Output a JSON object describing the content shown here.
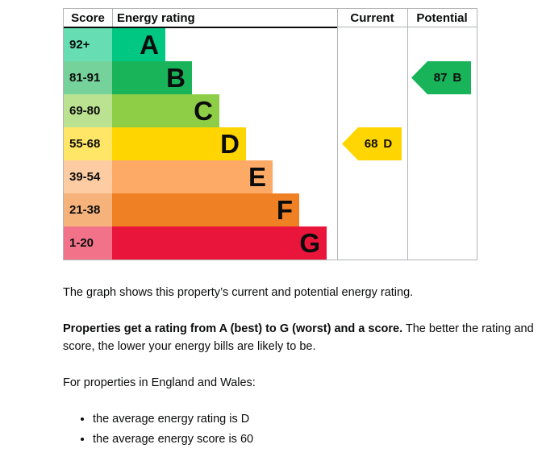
{
  "chart": {
    "headers": {
      "score": "Score",
      "energy_rating": "Energy rating",
      "current": "Current",
      "potential": "Potential"
    },
    "bands": [
      {
        "letter": "A",
        "score_range": "92+",
        "color": "#00c781"
      },
      {
        "letter": "B",
        "score_range": "81-91",
        "color": "#19b459"
      },
      {
        "letter": "C",
        "score_range": "69-80",
        "color": "#8dce46"
      },
      {
        "letter": "D",
        "score_range": "55-68",
        "color": "#ffd500"
      },
      {
        "letter": "E",
        "score_range": "39-54",
        "color": "#fcaa65"
      },
      {
        "letter": "F",
        "score_range": "21-38",
        "color": "#ef8023"
      },
      {
        "letter": "G",
        "score_range": "1-20",
        "color": "#e9153b"
      }
    ],
    "current": {
      "label": "68 D",
      "score": "68",
      "band": "D",
      "band_index": 3,
      "color": "#ffd500"
    },
    "potential": {
      "label": "87 B",
      "score": "87",
      "band": "B",
      "band_index": 1,
      "color": "#19b459"
    },
    "border_color": "#b1b4b6",
    "header_rule_color": "#0b0c0c"
  },
  "chart_data": {
    "type": "bar",
    "title": "Energy rating",
    "columns": [
      "Score",
      "Energy rating",
      "Current",
      "Potential"
    ],
    "categories": [
      "A",
      "B",
      "C",
      "D",
      "E",
      "F",
      "G"
    ],
    "score_ranges": [
      "92+",
      "81-91",
      "69-80",
      "55-68",
      "39-54",
      "21-38",
      "1-20"
    ],
    "band_colors": [
      "#00c781",
      "#19b459",
      "#8dce46",
      "#ffd500",
      "#fcaa65",
      "#ef8023",
      "#e9153b"
    ],
    "bar_relative_lengths": [
      1,
      1.5,
      2,
      2.5,
      3,
      3.5,
      4
    ],
    "current": {
      "score": 68,
      "band": "D"
    },
    "potential": {
      "score": 87,
      "band": "B"
    },
    "legend_position": "none",
    "grid": false
  },
  "text": {
    "para1": "The graph shows this property’s current and potential energy rating.",
    "para2_bold": "Properties get a rating from A (best) to G (worst) and a score.",
    "para2_rest": " The better the rating and score, the lower your energy bills are likely to be.",
    "para3": "For properties in England and Wales:",
    "bullets": [
      "the average energy rating is D",
      "the average energy score is 60"
    ]
  }
}
